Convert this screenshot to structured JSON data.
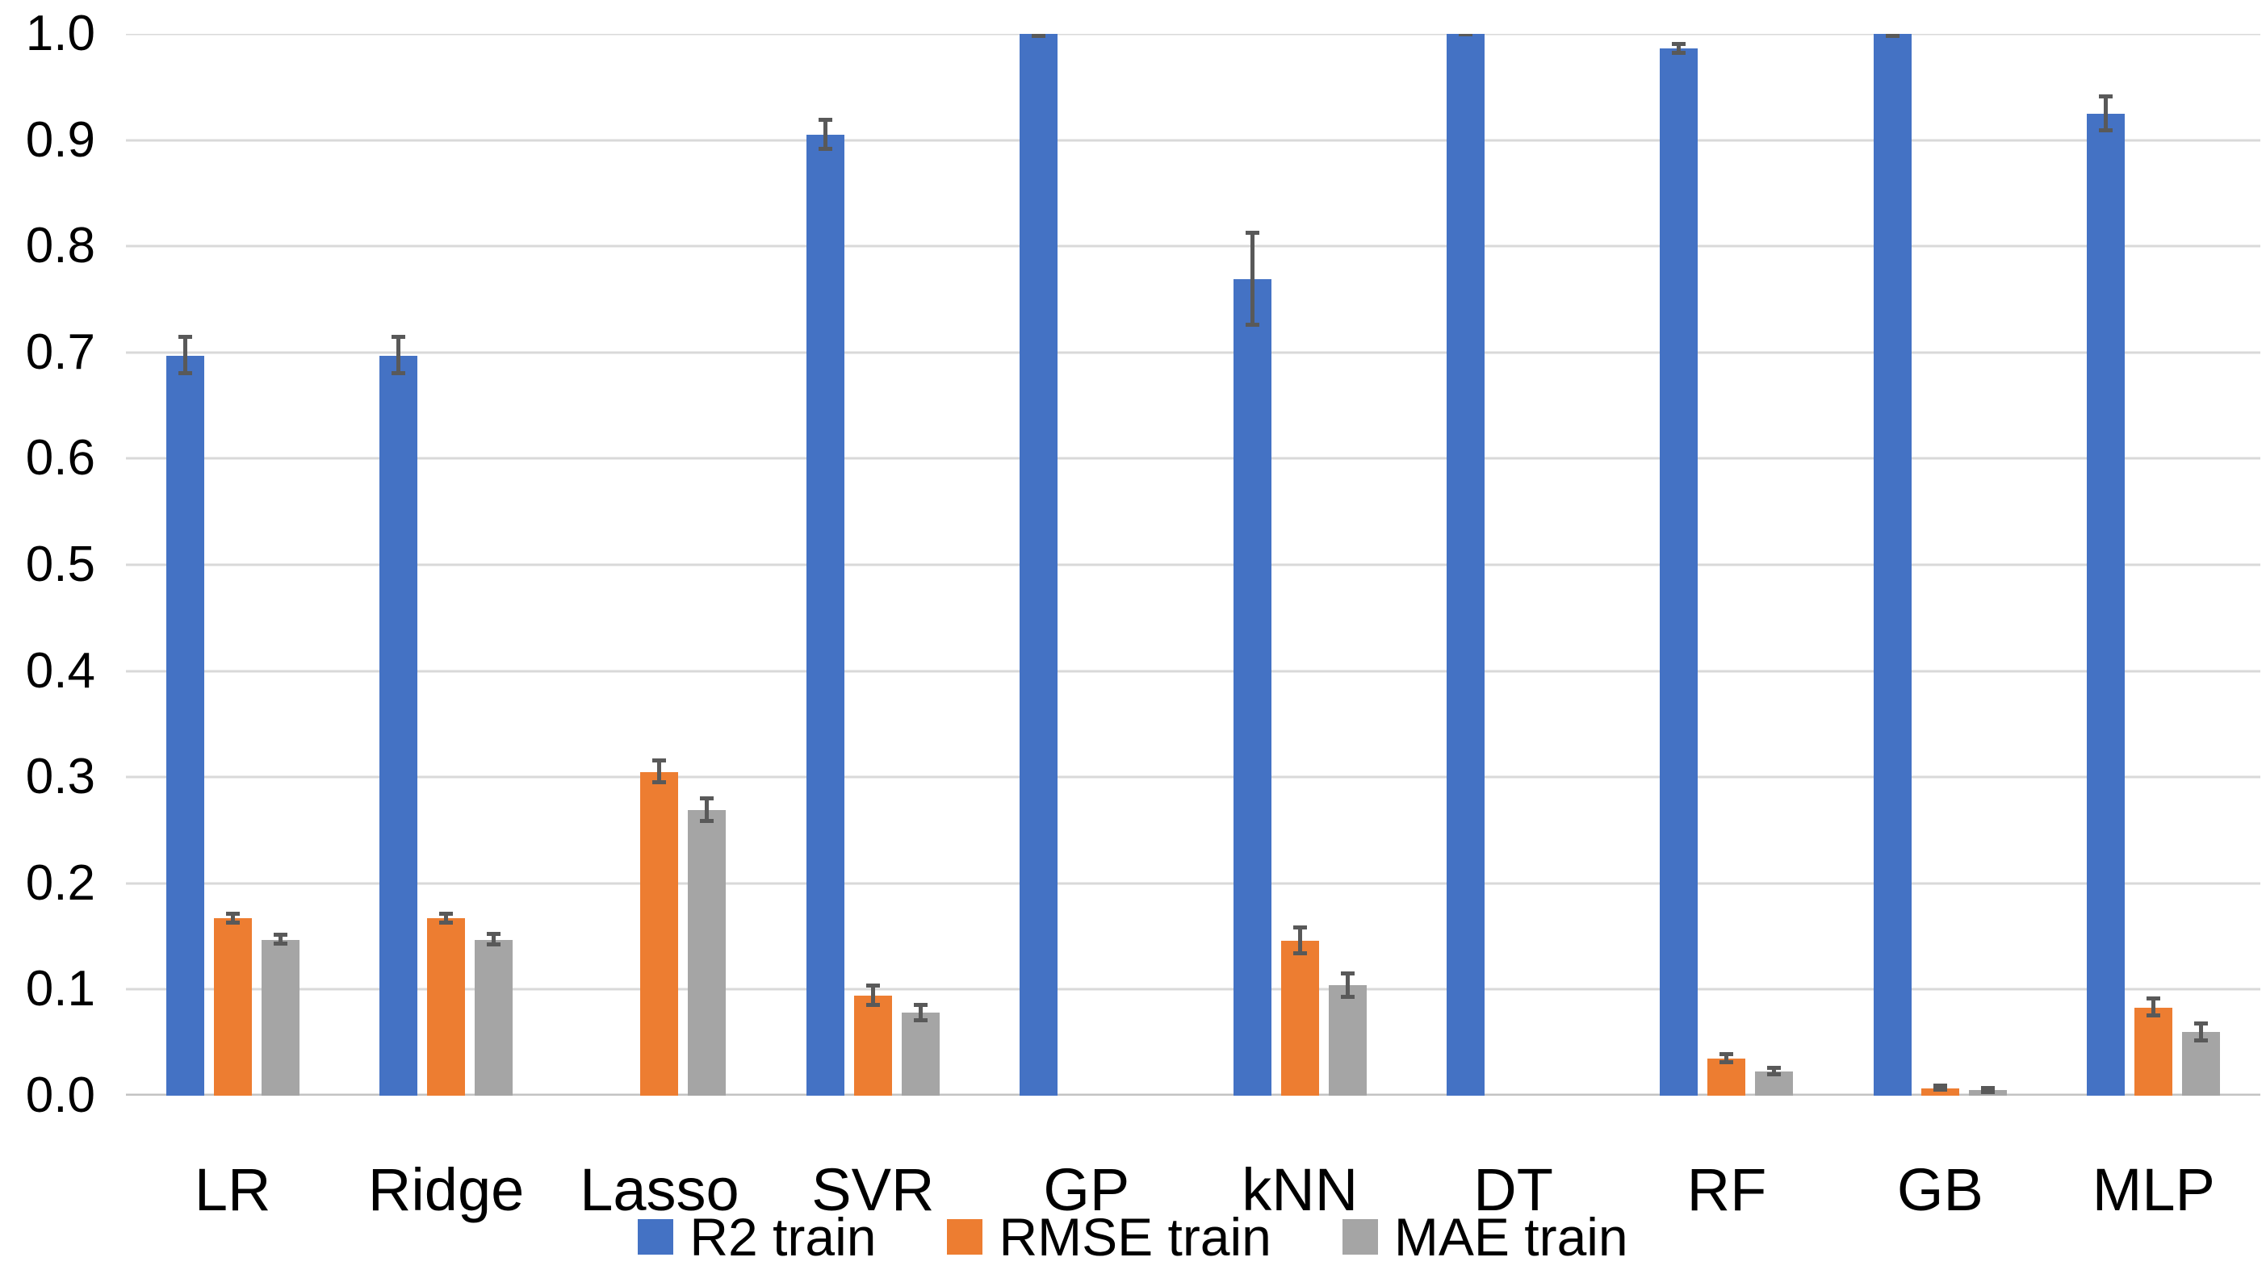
{
  "chart_data": {
    "type": "bar",
    "title": "",
    "xlabel": "",
    "ylabel": "",
    "categories": [
      "LR",
      "Ridge",
      "Lasso",
      "SVR",
      "GP",
      "kNN",
      "DT",
      "RF",
      "GB",
      "MLP"
    ],
    "series": [
      {
        "name": "R2 train",
        "color": "#4472C4",
        "values": [
          0.697,
          0.697,
          0.0,
          0.905,
          1.0,
          0.769,
          1.0,
          0.986,
          1.0,
          0.925
        ],
        "errors": [
          0.017,
          0.017,
          0.0,
          0.014,
          0.002,
          0.043,
          0.001,
          0.004,
          0.002,
          0.016
        ]
      },
      {
        "name": "RMSE train",
        "color": "#ED7D31",
        "values": [
          0.167,
          0.167,
          0.305,
          0.094,
          0.0,
          0.146,
          0.0,
          0.035,
          0.007,
          0.083
        ],
        "errors": [
          0.004,
          0.004,
          0.01,
          0.009,
          0.0,
          0.012,
          0.0,
          0.004,
          0.002,
          0.008
        ]
      },
      {
        "name": "MAE train",
        "color": "#A5A5A5",
        "values": [
          0.147,
          0.147,
          0.269,
          0.078,
          0.0,
          0.104,
          0.0,
          0.023,
          0.005,
          0.06
        ],
        "errors": [
          0.004,
          0.005,
          0.011,
          0.007,
          0.0,
          0.011,
          0.0,
          0.003,
          0.002,
          0.008
        ]
      }
    ],
    "ylim": [
      0.0,
      1.0
    ],
    "ytick_step": 0.1,
    "ytick_labels": [
      "0.0",
      "0.1",
      "0.2",
      "0.3",
      "0.4",
      "0.5",
      "0.6",
      "0.7",
      "0.8",
      "0.9",
      "1.0"
    ],
    "grid": "horizontal-on",
    "legend_position": "bottom-center",
    "has_error_bars": true,
    "colors": {
      "error_bar": "#595959",
      "gridline": "#D9D9D9",
      "axis_line": "#C3C3C3",
      "text": "#000000",
      "background": "#FFFFFF"
    }
  }
}
